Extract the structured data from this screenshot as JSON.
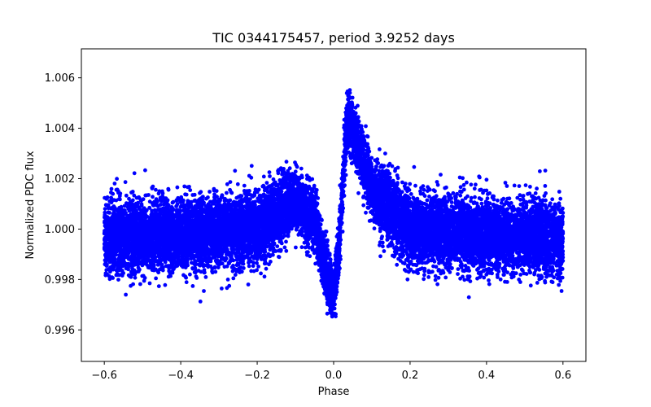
{
  "chart_data": {
    "type": "scatter",
    "title": "TIC 0344175457, period 3.9252 days",
    "xlabel": "Phase",
    "ylabel": "Normalized PDC flux",
    "xlim": [
      -0.66,
      0.66
    ],
    "ylim": [
      0.99475,
      1.00715
    ],
    "x_ticks": [
      -0.6,
      -0.4,
      -0.2,
      0.0,
      0.2,
      0.4,
      0.6
    ],
    "x_tick_labels": [
      "−0.6",
      "−0.4",
      "−0.2",
      "0.0",
      "0.2",
      "0.4",
      "0.6"
    ],
    "y_ticks": [
      0.996,
      0.998,
      1.0,
      1.002,
      1.004,
      1.006
    ],
    "y_tick_labels": [
      "0.996",
      "0.998",
      "1.000",
      "1.002",
      "1.004",
      "1.006"
    ],
    "grid": false,
    "legend": "none",
    "series": [
      {
        "name": "PDC flux",
        "color": "#0000ff",
        "marker": "circle",
        "n_points": 14000,
        "x_range": [
          -0.6,
          0.6
        ],
        "baseline": 1.0,
        "scatter_sigma": 0.0007,
        "profile": [
          [
            -0.6,
            0.99965
          ],
          [
            -0.4,
            0.99975
          ],
          [
            -0.2,
            1.0001
          ],
          [
            -0.1,
            1.0011
          ],
          [
            -0.05,
            1.0003
          ],
          [
            -0.02,
            0.9985
          ],
          [
            0.0,
            0.9972
          ],
          [
            0.015,
            0.9995
          ],
          [
            0.035,
            1.0045
          ],
          [
            0.06,
            1.0035
          ],
          [
            0.1,
            1.0015
          ],
          [
            0.2,
            0.99995
          ],
          [
            0.4,
            0.99975
          ],
          [
            0.6,
            0.99965
          ]
        ]
      }
    ]
  }
}
